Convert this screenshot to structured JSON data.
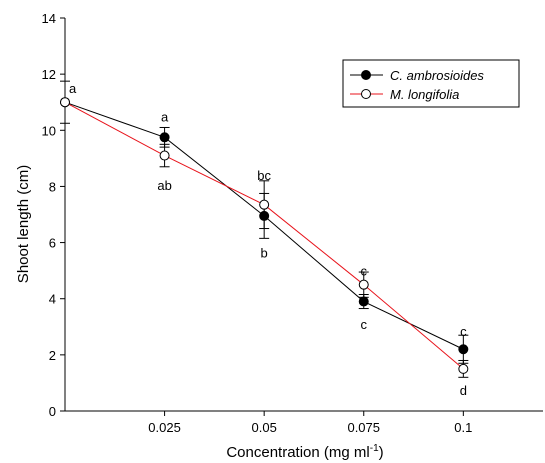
{
  "chart_data": {
    "type": "line",
    "title": "",
    "xlabel": "Concentration (mg ml",
    "xlabel_sup": "-1",
    "xlabel_close": ")",
    "ylabel": "Shoot length (cm)",
    "xlim": [
      0,
      0.12
    ],
    "ylim": [
      0,
      14
    ],
    "x_ticks": [
      0.025,
      0.05,
      0.075,
      0.1
    ],
    "x_tick_labels": [
      "0.025",
      "0.05",
      "0.075",
      "0.1"
    ],
    "y_ticks": [
      0,
      2,
      4,
      6,
      8,
      10,
      12,
      14
    ],
    "y_tick_labels": [
      "0",
      "2",
      "4",
      "6",
      "8",
      "10",
      "12",
      "14"
    ],
    "grid": false,
    "legend_position": "top-right",
    "x": [
      0,
      0.025,
      0.05,
      0.075,
      0.1
    ],
    "series": [
      {
        "name": "C. ambrosioides",
        "color": "#000000",
        "marker": "filled-circle",
        "values": [
          11.0,
          9.75,
          6.95,
          3.9,
          2.2
        ],
        "errors": [
          0.75,
          0.35,
          0.8,
          0.25,
          0.5
        ]
      },
      {
        "name": "M. longifolia",
        "color": "#e8131b",
        "marker": "open-circle",
        "values": [
          11.0,
          9.1,
          7.35,
          4.5,
          1.5
        ],
        "errors": [
          0.0,
          0.4,
          0.85,
          0.45,
          0.3
        ]
      }
    ],
    "annotations": [
      {
        "text": "a",
        "x": 0,
        "y": 11.5
      },
      {
        "text": "a",
        "x": 0.025,
        "y": 10.5
      },
      {
        "text": "ab",
        "x": 0.025,
        "y": 8.05
      },
      {
        "text": "bc",
        "x": 0.05,
        "y": 8.4
      },
      {
        "text": "b",
        "x": 0.05,
        "y": 5.65
      },
      {
        "text": "c",
        "x": 0.075,
        "y": 5.0
      },
      {
        "text": "c",
        "x": 0.075,
        "y": 3.1
      },
      {
        "text": "c",
        "x": 0.1,
        "y": 2.85
      },
      {
        "text": "d",
        "x": 0.1,
        "y": 0.75
      }
    ]
  }
}
